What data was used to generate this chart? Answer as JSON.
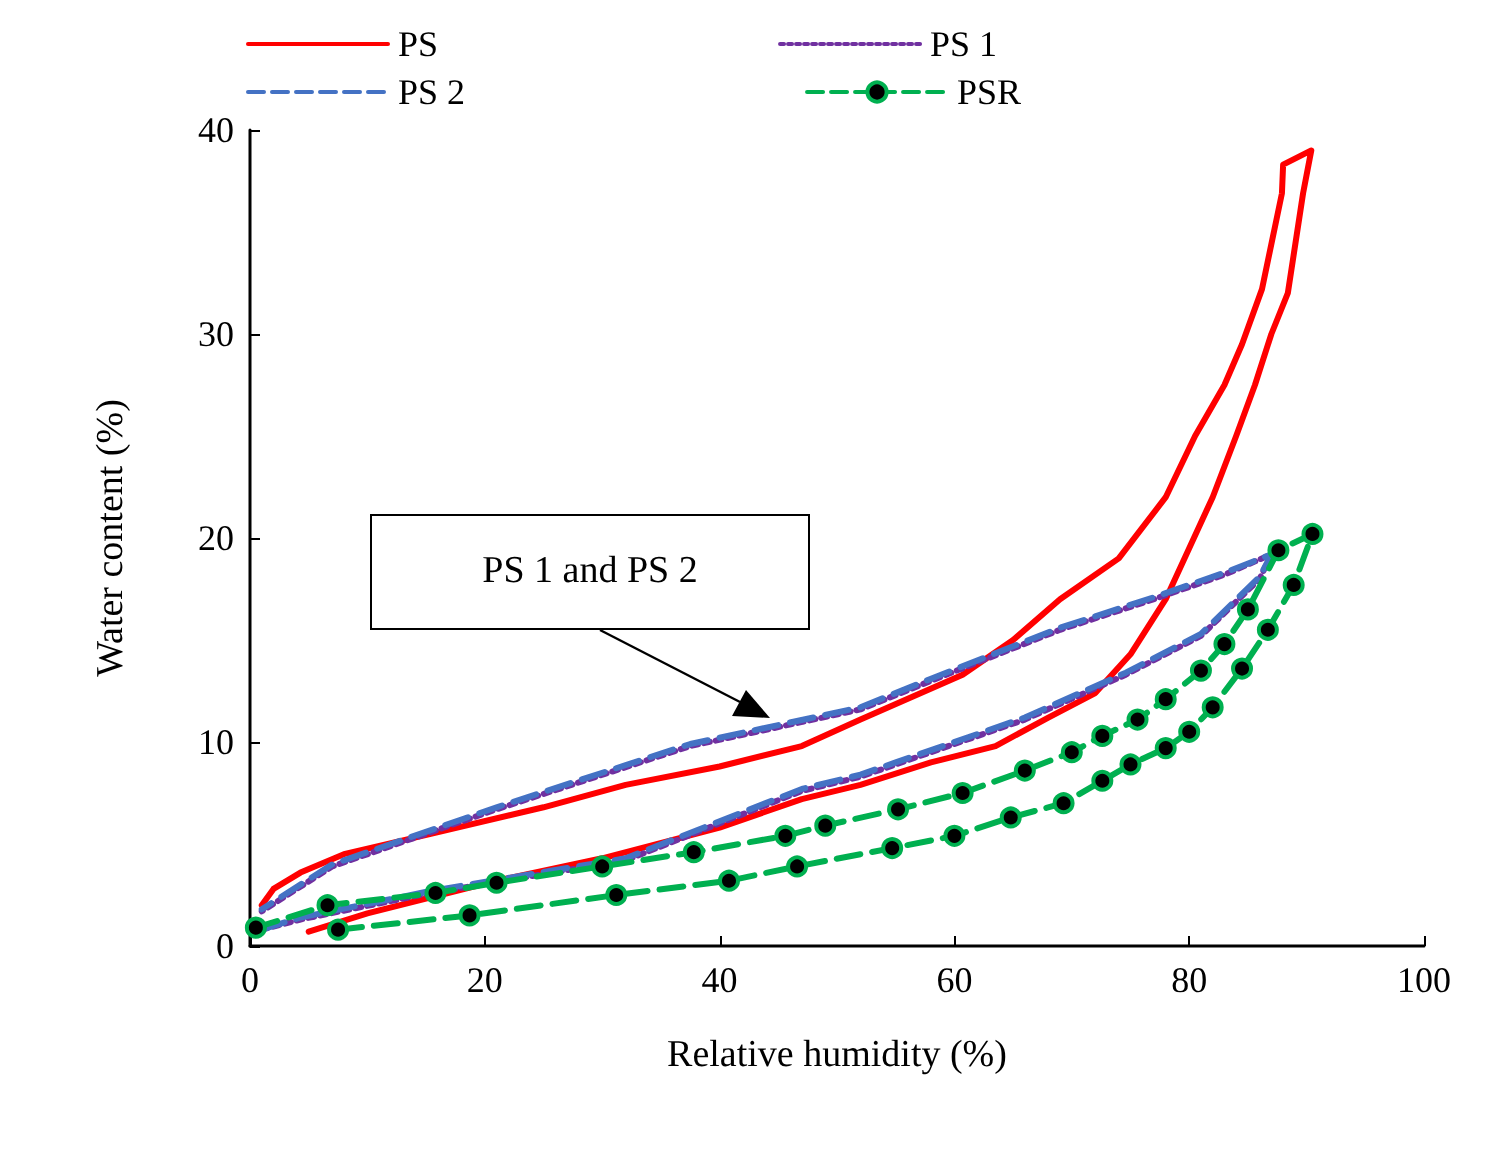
{
  "chart_data": {
    "type": "line",
    "xlabel": "Relative humidity (%)",
    "ylabel": "Water content (%)",
    "xlim": [
      0,
      100
    ],
    "xticks": [
      0,
      20,
      40,
      60,
      80,
      100
    ],
    "ylim": [
      0,
      40
    ],
    "yticks": [
      0,
      10,
      20,
      30,
      40
    ],
    "grid": false,
    "legend": "top",
    "annotations": [
      "PS 1 and PS 2"
    ],
    "series": [
      {
        "name": "PS",
        "color": "#ff0000",
        "line_style": "solid",
        "marker": "none",
        "x": [
          5,
          10,
          21,
          30,
          40,
          47,
          52,
          58,
          63.5,
          68,
          72,
          75,
          78,
          80,
          82,
          84,
          85.6,
          87,
          88.4,
          89.7,
          90.4,
          88,
          87.9,
          86.2,
          84.5,
          83,
          80.5,
          78,
          74,
          69,
          65,
          60.7,
          52,
          47,
          40,
          32,
          25,
          15.4,
          8,
          4.3,
          2,
          1
        ],
        "values": [
          0.7,
          1.6,
          3.2,
          4.3,
          5.8,
          7.2,
          7.9,
          9,
          9.8,
          11.2,
          12.4,
          14.3,
          17,
          19.5,
          22,
          25,
          27.5,
          30,
          32,
          36.9,
          39,
          38.3,
          36.9,
          32.2,
          29.5,
          27.5,
          25,
          22,
          19,
          17,
          15,
          13.3,
          11.1,
          9.8,
          8.8,
          7.9,
          6.8,
          5.5,
          4.5,
          3.6,
          2.8,
          2
        ]
      },
      {
        "name": "PS 1",
        "color": "#7030a0",
        "line_style": "dotted",
        "marker": "none",
        "x": [
          1,
          4.3,
          15.4,
          32,
          47,
          52,
          55,
          66,
          74.6,
          81,
          86,
          87,
          83,
          77,
          69,
          58,
          52,
          37.5,
          21,
          7,
          1
        ],
        "values": [
          0.8,
          1.3,
          2.6,
          4.2,
          7.6,
          8.3,
          8.9,
          11.1,
          13.3,
          15.2,
          18,
          19.2,
          18.2,
          17,
          15.5,
          13,
          11.6,
          9.8,
          6.7,
          3.9,
          1.7
        ]
      },
      {
        "name": "PS 2",
        "color": "#4472c4",
        "line_style": "dashed",
        "marker": "none",
        "x": [
          1,
          4.3,
          15.4,
          32,
          47,
          52,
          55,
          66,
          74.6,
          81,
          86,
          87,
          83,
          77,
          69,
          58,
          52,
          37.5,
          21,
          7,
          1
        ],
        "values": [
          0.8,
          1.4,
          2.7,
          4.3,
          7.7,
          8.4,
          9,
          11.2,
          13.4,
          15.3,
          18.1,
          19.2,
          18.3,
          17.1,
          15.6,
          13.1,
          11.7,
          9.9,
          6.8,
          4,
          1.8
        ]
      },
      {
        "name": "PSR",
        "color": "#00b050",
        "line_style": "dashed",
        "marker": "circle",
        "x": [
          7.5,
          18.7,
          31.2,
          40.8,
          46.6,
          54.7,
          60,
          64.8,
          69.3,
          72.6,
          75,
          78,
          80,
          82,
          84.5,
          86.7,
          88.9,
          90.5,
          87.6,
          85,
          83,
          81,
          78,
          75.6,
          72.6,
          70,
          66,
          60.7,
          55.2,
          49,
          45.6,
          37.8,
          30,
          21,
          15.8,
          6.6,
          0.5
        ],
        "values": [
          0.8,
          1.5,
          2.5,
          3.2,
          3.9,
          4.8,
          5.4,
          6.3,
          7,
          8.1,
          8.9,
          9.7,
          10.5,
          11.7,
          13.6,
          15.5,
          17.7,
          20.2,
          19.4,
          16.5,
          14.8,
          13.5,
          12.1,
          11.1,
          10.3,
          9.5,
          8.6,
          7.5,
          6.7,
          5.9,
          5.4,
          4.6,
          3.9,
          3.1,
          2.6,
          2,
          0.9
        ]
      }
    ]
  }
}
